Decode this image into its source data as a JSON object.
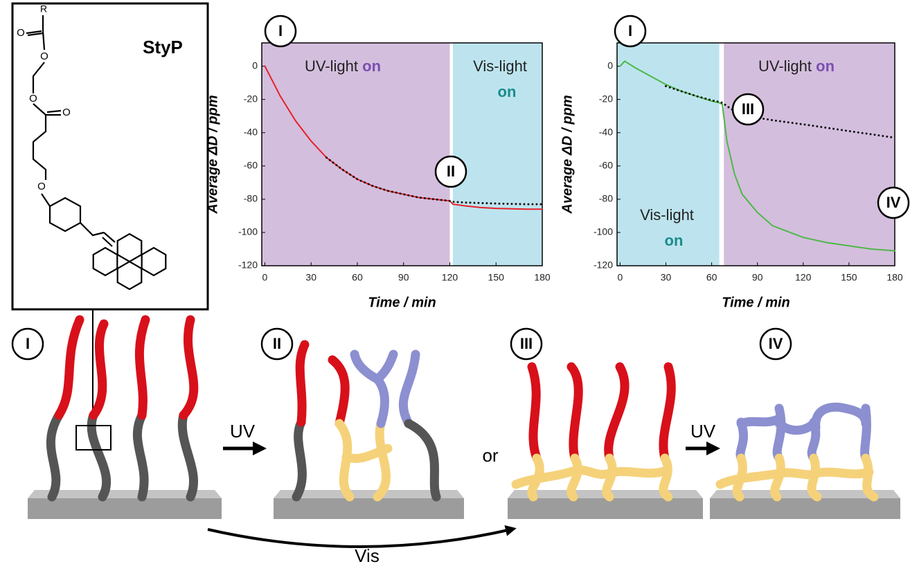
{
  "chart_data": [
    {
      "type": "line",
      "y_label": "Average ΔD / ppm",
      "x_label": "Time / min",
      "xlim": [
        -2,
        180
      ],
      "ylim": [
        -120,
        14
      ],
      "xticks": [
        0,
        30,
        60,
        90,
        120,
        150,
        180
      ],
      "yticks": [
        0,
        -20,
        -40,
        -60,
        -80,
        -100,
        -120
      ],
      "regions": [
        {
          "from": -2,
          "to": 120,
          "color": "#d4bedd",
          "text": "UV-light",
          "emphasis": "on",
          "emphasis_color": "#7a4fb0"
        },
        {
          "from": 122,
          "to": 180,
          "color": "#bde4ee",
          "text": "Vis-light",
          "emphasis": "on",
          "emphasis_color": "#1a8c8c"
        }
      ],
      "x": [
        0,
        10,
        20,
        30,
        40,
        50,
        60,
        70,
        80,
        90,
        100,
        110,
        120,
        122,
        130,
        140,
        150,
        160,
        170,
        180
      ],
      "series": [
        {
          "color": "#e8202a",
          "style": "solid",
          "values": [
            0,
            -18,
            -33,
            -45,
            -55,
            -62,
            -68,
            -72,
            -75,
            -77,
            -79,
            -80,
            -81,
            -83,
            -84,
            -85,
            -85.5,
            -85.8,
            -86,
            -86
          ]
        },
        {
          "color": "#111111",
          "style": "dotted",
          "values": [
            null,
            null,
            null,
            null,
            -55,
            -62,
            -68,
            -72,
            -75,
            -77,
            -79,
            -80,
            -81,
            -81.5,
            -82,
            -82.3,
            -82.6,
            -82.8,
            -83,
            -83
          ]
        }
      ],
      "annotations": [
        "I",
        "II"
      ]
    },
    {
      "type": "line",
      "y_label": "Average ΔD / ppm",
      "x_label": "Time / min",
      "xlim": [
        -2,
        180
      ],
      "ylim": [
        -120,
        14
      ],
      "xticks": [
        0,
        30,
        60,
        90,
        120,
        150,
        180
      ],
      "yticks": [
        0,
        -20,
        -40,
        -60,
        -80,
        -100,
        -120
      ],
      "regions": [
        {
          "from": -2,
          "to": 65,
          "color": "#bde4ee",
          "text": "Vis-light",
          "emphasis": "on",
          "emphasis_color": "#1a8c8c"
        },
        {
          "from": 68,
          "to": 180,
          "color": "#d4bedd",
          "text": "UV-light",
          "emphasis": "on",
          "emphasis_color": "#7a4fb0"
        }
      ],
      "x": [
        0,
        3,
        10,
        20,
        30,
        40,
        50,
        60,
        65,
        67,
        70,
        75,
        80,
        90,
        100,
        120,
        135,
        150,
        165,
        180
      ],
      "series": [
        {
          "color": "#4cb848",
          "style": "solid",
          "values": [
            0,
            3,
            -1,
            -6,
            -11,
            -15,
            -18,
            -21,
            -22,
            -23,
            -45,
            -65,
            -77,
            -88,
            -96,
            -103,
            -106,
            -108,
            -110,
            -111
          ]
        },
        {
          "color": "#111111",
          "style": "dotted",
          "values": [
            null,
            null,
            null,
            null,
            -12,
            -15,
            -18,
            -20.5,
            -21.5,
            -22,
            -24,
            -27,
            -29,
            -31,
            -32.5,
            -35,
            -37,
            -39,
            -41,
            -43
          ]
        }
      ],
      "annotations": [
        "I",
        "III",
        "IV"
      ]
    }
  ],
  "diagram": {
    "molecule": {
      "name": "StyP",
      "atoms": [
        "R",
        "O",
        "O",
        "O",
        "O"
      ]
    },
    "stages": [
      "I",
      "II",
      "III",
      "IV"
    ],
    "arrows": [
      "UV",
      "UV",
      "Vis"
    ],
    "or": "or"
  }
}
